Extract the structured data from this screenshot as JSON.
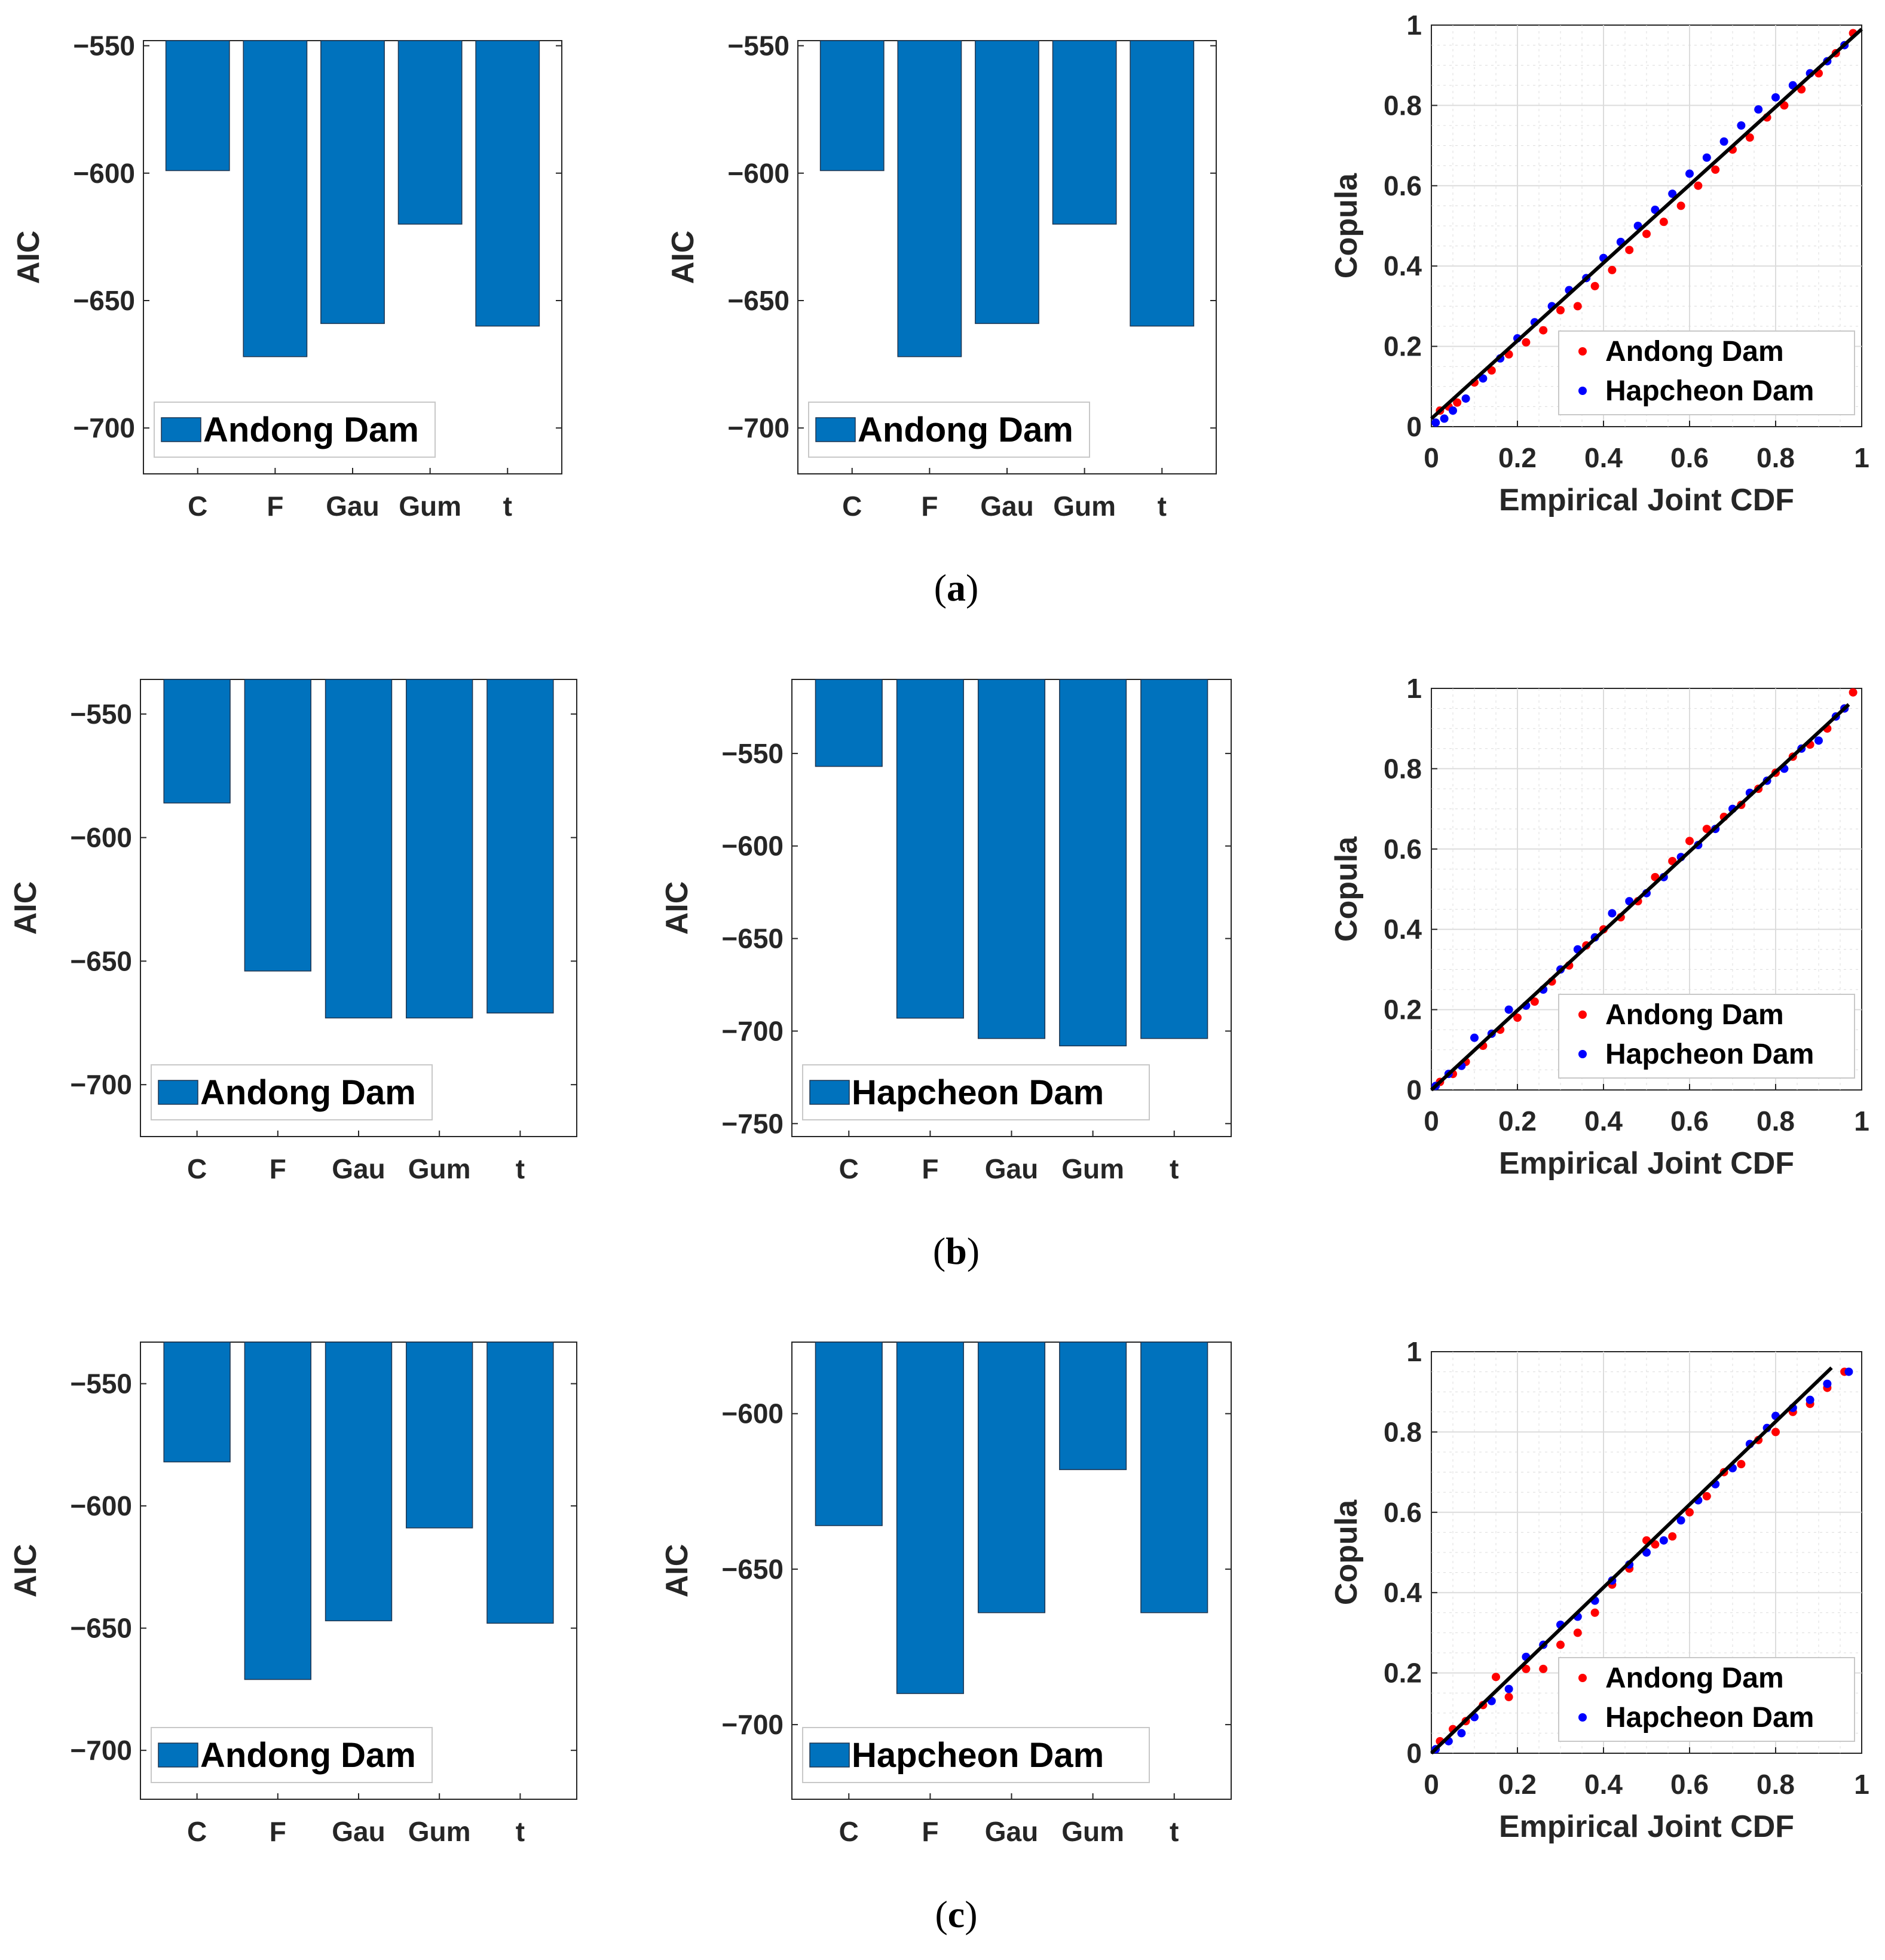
{
  "colors": {
    "bar": "#0072bd",
    "andong_point": "#ff0000",
    "hapcheon_point": "#0000ff",
    "fit_line": "#000000",
    "axis": "#262626",
    "grid": "#dcdcdc"
  },
  "captions": [
    {
      "open": "(",
      "letter": "a",
      "close": ")"
    },
    {
      "open": "(",
      "letter": "b",
      "close": ")"
    },
    {
      "open": "(",
      "letter": "c",
      "close": ")"
    }
  ],
  "chart_data": [
    {
      "id": "a1",
      "row": 0,
      "col": 0,
      "type": "bar",
      "title": "",
      "ylabel": "AIC",
      "xlabel": "",
      "categories": [
        "C",
        "F",
        "Gau",
        "Gum",
        "t"
      ],
      "values": [
        -599,
        -672,
        -659,
        -620,
        -660
      ],
      "ylim": [
        -718,
        -548
      ],
      "yticks": [
        -550,
        -600,
        -650,
        -700
      ],
      "legend": "Andong Dam",
      "legend_position": "bottom-left"
    },
    {
      "id": "a2",
      "row": 0,
      "col": 1,
      "type": "bar",
      "title": "",
      "ylabel": "AIC",
      "xlabel": "",
      "categories": [
        "C",
        "F",
        "Gau",
        "Gum",
        "t"
      ],
      "values": [
        -599,
        -672,
        -659,
        -620,
        -660
      ],
      "ylim": [
        -718,
        -548
      ],
      "yticks": [
        -550,
        -600,
        -650,
        -700
      ],
      "legend": "Andong Dam",
      "legend_position": "bottom-left"
    },
    {
      "id": "a3",
      "row": 0,
      "col": 2,
      "type": "scatter",
      "title": "",
      "ylabel": "Copula",
      "xlabel": "Empirical Joint CDF",
      "xlim": [
        0,
        1
      ],
      "ylim": [
        0,
        1
      ],
      "xticks": [
        "0",
        "0.2",
        "0.4",
        "0.6",
        "0.8",
        "1"
      ],
      "yticks": [
        "0",
        "0.2",
        "0.4",
        "0.6",
        "0.8",
        "1"
      ],
      "grid": true,
      "fit_line": [
        [
          0.0,
          0.02
        ],
        [
          1.0,
          0.99
        ]
      ],
      "series": [
        {
          "name": "Andong Dam",
          "color": "#ff0000",
          "points": [
            [
              0.02,
              0.04
            ],
            [
              0.04,
              0.05
            ],
            [
              0.06,
              0.06
            ],
            [
              0.1,
              0.11
            ],
            [
              0.14,
              0.14
            ],
            [
              0.18,
              0.18
            ],
            [
              0.22,
              0.21
            ],
            [
              0.26,
              0.24
            ],
            [
              0.3,
              0.29
            ],
            [
              0.34,
              0.3
            ],
            [
              0.38,
              0.35
            ],
            [
              0.42,
              0.39
            ],
            [
              0.46,
              0.44
            ],
            [
              0.5,
              0.48
            ],
            [
              0.54,
              0.51
            ],
            [
              0.58,
              0.55
            ],
            [
              0.62,
              0.6
            ],
            [
              0.66,
              0.64
            ],
            [
              0.7,
              0.69
            ],
            [
              0.74,
              0.72
            ],
            [
              0.78,
              0.77
            ],
            [
              0.82,
              0.8
            ],
            [
              0.86,
              0.84
            ],
            [
              0.9,
              0.88
            ],
            [
              0.94,
              0.93
            ],
            [
              0.98,
              0.98
            ]
          ]
        },
        {
          "name": "Hapcheon Dam",
          "color": "#0000ff",
          "points": [
            [
              0.01,
              0.01
            ],
            [
              0.03,
              0.02
            ],
            [
              0.05,
              0.04
            ],
            [
              0.08,
              0.07
            ],
            [
              0.12,
              0.12
            ],
            [
              0.16,
              0.17
            ],
            [
              0.2,
              0.22
            ],
            [
              0.24,
              0.26
            ],
            [
              0.28,
              0.3
            ],
            [
              0.32,
              0.34
            ],
            [
              0.36,
              0.37
            ],
            [
              0.4,
              0.42
            ],
            [
              0.44,
              0.46
            ],
            [
              0.48,
              0.5
            ],
            [
              0.52,
              0.54
            ],
            [
              0.56,
              0.58
            ],
            [
              0.6,
              0.63
            ],
            [
              0.64,
              0.67
            ],
            [
              0.68,
              0.71
            ],
            [
              0.72,
              0.75
            ],
            [
              0.76,
              0.79
            ],
            [
              0.8,
              0.82
            ],
            [
              0.84,
              0.85
            ],
            [
              0.88,
              0.88
            ],
            [
              0.92,
              0.91
            ],
            [
              0.96,
              0.95
            ]
          ]
        }
      ],
      "legend_position": "bottom-right"
    },
    {
      "id": "b1",
      "row": 1,
      "col": 0,
      "type": "bar",
      "title": "",
      "ylabel": "AIC",
      "xlabel": "",
      "categories": [
        "C",
        "F",
        "Gau",
        "Gum",
        "t"
      ],
      "values": [
        -586,
        -654,
        -673,
        -673,
        -671
      ],
      "ylim": [
        -721,
        -536
      ],
      "yticks": [
        -550,
        -600,
        -650,
        -700
      ],
      "legend": "Andong Dam",
      "legend_position": "bottom-left"
    },
    {
      "id": "b2",
      "row": 1,
      "col": 1,
      "type": "bar",
      "title": "",
      "ylabel": "AIC",
      "xlabel": "",
      "categories": [
        "C",
        "F",
        "Gau",
        "Gum",
        "t"
      ],
      "values": [
        -557,
        -693,
        -704,
        -708,
        -704
      ],
      "ylim": [
        -757,
        -510
      ],
      "yticks": [
        -550,
        -600,
        -650,
        -700,
        -750
      ],
      "legend": "Hapcheon Dam",
      "legend_position": "bottom-left"
    },
    {
      "id": "b3",
      "row": 1,
      "col": 2,
      "type": "scatter",
      "title": "",
      "ylabel": "Copula",
      "xlabel": "Empirical Joint CDF",
      "xlim": [
        0,
        1
      ],
      "ylim": [
        0,
        1
      ],
      "xticks": [
        "0",
        "0.2",
        "0.4",
        "0.6",
        "0.8",
        "1"
      ],
      "yticks": [
        "0",
        "0.2",
        "0.4",
        "0.6",
        "0.8",
        "1"
      ],
      "grid": true,
      "fit_line": [
        [
          0.0,
          0.0
        ],
        [
          0.97,
          0.96
        ]
      ],
      "series": [
        {
          "name": "Andong Dam",
          "color": "#ff0000",
          "points": [
            [
              0.02,
              0.02
            ],
            [
              0.05,
              0.04
            ],
            [
              0.08,
              0.07
            ],
            [
              0.12,
              0.11
            ],
            [
              0.16,
              0.15
            ],
            [
              0.2,
              0.18
            ],
            [
              0.24,
              0.22
            ],
            [
              0.28,
              0.27
            ],
            [
              0.32,
              0.31
            ],
            [
              0.36,
              0.36
            ],
            [
              0.4,
              0.4
            ],
            [
              0.44,
              0.43
            ],
            [
              0.48,
              0.47
            ],
            [
              0.52,
              0.53
            ],
            [
              0.56,
              0.57
            ],
            [
              0.6,
              0.62
            ],
            [
              0.64,
              0.65
            ],
            [
              0.68,
              0.68
            ],
            [
              0.72,
              0.71
            ],
            [
              0.76,
              0.75
            ],
            [
              0.8,
              0.79
            ],
            [
              0.84,
              0.83
            ],
            [
              0.88,
              0.86
            ],
            [
              0.92,
              0.9
            ],
            [
              0.96,
              0.95
            ],
            [
              0.98,
              0.99
            ]
          ]
        },
        {
          "name": "Hapcheon Dam",
          "color": "#0000ff",
          "points": [
            [
              0.01,
              0.01
            ],
            [
              0.04,
              0.04
            ],
            [
              0.07,
              0.06
            ],
            [
              0.1,
              0.13
            ],
            [
              0.14,
              0.14
            ],
            [
              0.18,
              0.2
            ],
            [
              0.22,
              0.21
            ],
            [
              0.26,
              0.25
            ],
            [
              0.3,
              0.3
            ],
            [
              0.34,
              0.35
            ],
            [
              0.38,
              0.38
            ],
            [
              0.42,
              0.44
            ],
            [
              0.46,
              0.47
            ],
            [
              0.5,
              0.49
            ],
            [
              0.54,
              0.53
            ],
            [
              0.58,
              0.58
            ],
            [
              0.62,
              0.61
            ],
            [
              0.66,
              0.65
            ],
            [
              0.7,
              0.7
            ],
            [
              0.74,
              0.74
            ],
            [
              0.78,
              0.77
            ],
            [
              0.82,
              0.8
            ],
            [
              0.86,
              0.85
            ],
            [
              0.9,
              0.87
            ],
            [
              0.94,
              0.93
            ],
            [
              0.96,
              0.95
            ]
          ]
        }
      ],
      "legend_position": "bottom-right"
    },
    {
      "id": "c1",
      "row": 2,
      "col": 0,
      "type": "bar",
      "title": "",
      "ylabel": "AIC",
      "xlabel": "",
      "categories": [
        "C",
        "F",
        "Gau",
        "Gum",
        "t"
      ],
      "values": [
        -582,
        -671,
        -647,
        -609,
        -648
      ],
      "ylim": [
        -720,
        -533
      ],
      "yticks": [
        -550,
        -600,
        -650,
        -700
      ],
      "legend": "Andong Dam",
      "legend_position": "bottom-left"
    },
    {
      "id": "c2",
      "row": 2,
      "col": 1,
      "type": "bar",
      "title": "",
      "ylabel": "AIC",
      "xlabel": "",
      "categories": [
        "C",
        "F",
        "Gau",
        "Gum",
        "t"
      ],
      "values": [
        -636,
        -690,
        -664,
        -618,
        -664
      ],
      "ylim": [
        -724,
        -577
      ],
      "yticks": [
        -600,
        -650,
        -700
      ],
      "legend": "Hapcheon Dam",
      "legend_position": "bottom-left"
    },
    {
      "id": "c3",
      "row": 2,
      "col": 2,
      "type": "scatter",
      "title": "",
      "ylabel": "Copula",
      "xlabel": "Empirical Joint CDF",
      "xlim": [
        0,
        1
      ],
      "ylim": [
        0,
        1
      ],
      "xticks": [
        "0",
        "0.2",
        "0.4",
        "0.6",
        "0.8",
        "1"
      ],
      "yticks": [
        "0",
        "0.2",
        "0.4",
        "0.6",
        "0.8",
        "1"
      ],
      "grid": true,
      "fit_line": [
        [
          0.0,
          0.0
        ],
        [
          0.93,
          0.96
        ]
      ],
      "series": [
        {
          "name": "Andong Dam",
          "color": "#ff0000",
          "points": [
            [
              0.02,
              0.03
            ],
            [
              0.05,
              0.06
            ],
            [
              0.08,
              0.08
            ],
            [
              0.12,
              0.12
            ],
            [
              0.15,
              0.19
            ],
            [
              0.18,
              0.14
            ],
            [
              0.22,
              0.21
            ],
            [
              0.26,
              0.21
            ],
            [
              0.3,
              0.27
            ],
            [
              0.34,
              0.3
            ],
            [
              0.38,
              0.35
            ],
            [
              0.42,
              0.42
            ],
            [
              0.46,
              0.46
            ],
            [
              0.5,
              0.53
            ],
            [
              0.52,
              0.52
            ],
            [
              0.56,
              0.54
            ],
            [
              0.6,
              0.6
            ],
            [
              0.64,
              0.64
            ],
            [
              0.68,
              0.7
            ],
            [
              0.72,
              0.72
            ],
            [
              0.76,
              0.78
            ],
            [
              0.8,
              0.8
            ],
            [
              0.84,
              0.85
            ],
            [
              0.88,
              0.87
            ],
            [
              0.92,
              0.91
            ],
            [
              0.96,
              0.95
            ]
          ]
        },
        {
          "name": "Hapcheon Dam",
          "color": "#0000ff",
          "points": [
            [
              0.01,
              0.01
            ],
            [
              0.04,
              0.03
            ],
            [
              0.07,
              0.05
            ],
            [
              0.1,
              0.09
            ],
            [
              0.14,
              0.13
            ],
            [
              0.18,
              0.16
            ],
            [
              0.22,
              0.24
            ],
            [
              0.26,
              0.27
            ],
            [
              0.3,
              0.32
            ],
            [
              0.34,
              0.34
            ],
            [
              0.38,
              0.38
            ],
            [
              0.42,
              0.43
            ],
            [
              0.46,
              0.47
            ],
            [
              0.5,
              0.5
            ],
            [
              0.54,
              0.53
            ],
            [
              0.58,
              0.58
            ],
            [
              0.62,
              0.63
            ],
            [
              0.66,
              0.67
            ],
            [
              0.7,
              0.71
            ],
            [
              0.74,
              0.77
            ],
            [
              0.78,
              0.81
            ],
            [
              0.8,
              0.84
            ],
            [
              0.84,
              0.86
            ],
            [
              0.88,
              0.88
            ],
            [
              0.92,
              0.92
            ],
            [
              0.97,
              0.95
            ]
          ]
        }
      ],
      "legend_position": "bottom-right"
    }
  ]
}
